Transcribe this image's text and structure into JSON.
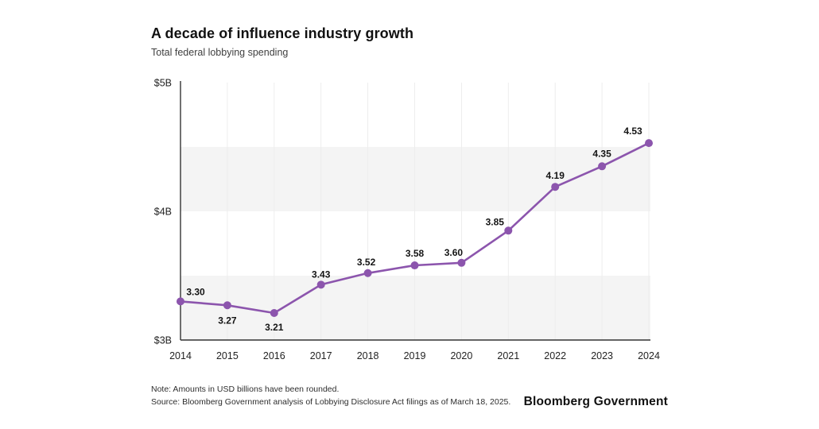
{
  "header": {
    "title": "A decade of influence industry growth",
    "subtitle": "Total federal lobbying spending"
  },
  "chart_data": {
    "type": "line",
    "title": "A decade of influence industry growth",
    "subtitle": "Total federal lobbying spending",
    "x": [
      "2014",
      "2015",
      "2016",
      "2017",
      "2018",
      "2019",
      "2020",
      "2021",
      "2022",
      "2023",
      "2024"
    ],
    "series": [
      {
        "name": "Total federal lobbying spending ($B)",
        "values": [
          3.3,
          3.27,
          3.21,
          3.43,
          3.52,
          3.58,
          3.6,
          3.85,
          4.19,
          4.35,
          4.53
        ]
      }
    ],
    "point_labels": [
      "3.30",
      "3.27",
      "3.21",
      "3.43",
      "3.52",
      "3.58",
      "3.60",
      "3.85",
      "4.19",
      "4.35",
      "4.53"
    ],
    "ylim": [
      3,
      5
    ],
    "ytick_values": [
      3,
      4,
      5
    ],
    "ytick_labels": [
      "$3B",
      "$4B",
      "$5B"
    ],
    "grid": "vertical-light, alternating horizontal bands of 0.5B",
    "legend_position": "none",
    "colors": {
      "line": "#8c55ad",
      "marker": "#8c55ad",
      "band": "#f4f4f4",
      "gridline": "#ededed",
      "axis": "#333333",
      "tick_text": "#222222",
      "data_label": "#141414"
    }
  },
  "footer": {
    "note": "Note: Amounts in USD billions have been rounded.",
    "source": "Source: Bloomberg Government analysis of Lobbying Disclosure Act filings as of March 18, 2025.",
    "brand": "Bloomberg Government"
  }
}
